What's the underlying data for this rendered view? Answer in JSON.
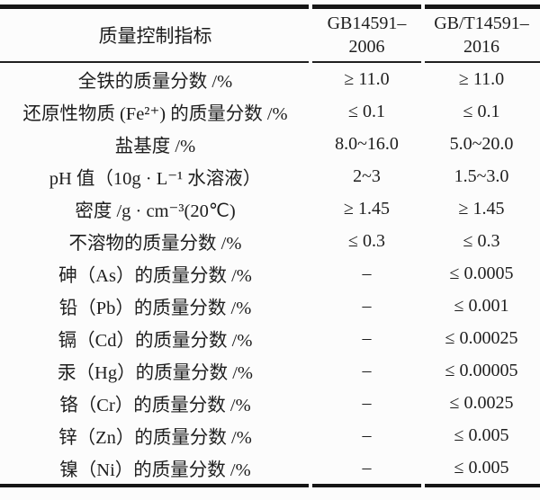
{
  "colors": {
    "background": "#fcfcfc",
    "text": "#1d1d1d",
    "rule": "#161616"
  },
  "table": {
    "header": {
      "indicator": "质量控制指标",
      "gb2006_line1": "GB14591–",
      "gb2006_line2": "2006",
      "gb2016_line1": "GB/T14591–",
      "gb2016_line2": "2016"
    },
    "rows": [
      {
        "label": "全铁的质量分数 /%",
        "gb2006": "≥ 11.0",
        "gb2016": "≥ 11.0"
      },
      {
        "label": "还原性物质 (Fe²⁺) 的质量分数 /%",
        "gb2006": "≤ 0.1",
        "gb2016": "≤ 0.1"
      },
      {
        "label": "盐基度 /%",
        "gb2006": "8.0~16.0",
        "gb2016": "5.0~20.0"
      },
      {
        "label": "pH 值（10g · L⁻¹ 水溶液）",
        "gb2006": "2~3",
        "gb2016": "1.5~3.0"
      },
      {
        "label": "密度 /g · cm⁻³(20℃)",
        "gb2006": "≥ 1.45",
        "gb2016": "≥ 1.45"
      },
      {
        "label": "不溶物的质量分数 /%",
        "gb2006": "≤ 0.3",
        "gb2016": "≤ 0.3"
      },
      {
        "label": "砷（As）的质量分数 /%",
        "gb2006": "–",
        "gb2016": "≤ 0.0005"
      },
      {
        "label": "铅（Pb）的质量分数 /%",
        "gb2006": "–",
        "gb2016": "≤ 0.001"
      },
      {
        "label": "镉（Cd）的质量分数 /%",
        "gb2006": "–",
        "gb2016": "≤ 0.00025"
      },
      {
        "label": "汞（Hg）的质量分数 /%",
        "gb2006": "–",
        "gb2016": "≤ 0.00005"
      },
      {
        "label": "铬（Cr）的质量分数 /%",
        "gb2006": "–",
        "gb2016": "≤ 0.0025"
      },
      {
        "label": "锌（Zn）的质量分数 /%",
        "gb2006": "–",
        "gb2016": "≤ 0.005"
      },
      {
        "label": "镍（Ni）的质量分数 /%",
        "gb2006": "–",
        "gb2016": "≤ 0.005"
      }
    ]
  }
}
